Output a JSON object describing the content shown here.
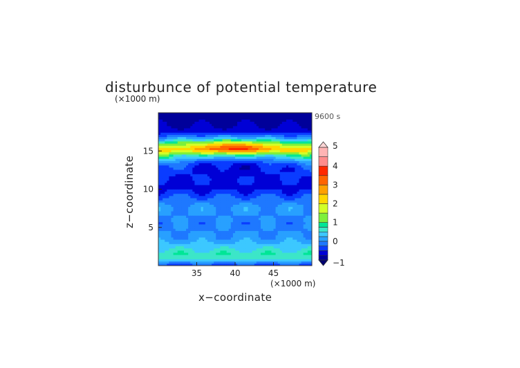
{
  "chart_data": {
    "type": "heatmap",
    "title": "disturbunce of potential temperature",
    "z_unit_label": "(×1000 m)",
    "x_unit_label": "(×1000 m)",
    "time_label": "9600 s",
    "xlabel": "x−coordinate",
    "ylabel": "z−coordinate",
    "xlim": [
      30,
      50
    ],
    "ylim": [
      0,
      20
    ],
    "x_ticks": [
      "35",
      "40",
      "45"
    ],
    "y_ticks": [
      "5",
      "10",
      "15"
    ],
    "colorbar": {
      "ticks": [
        "5",
        "4",
        "3",
        "2",
        "1",
        "0",
        "−1"
      ],
      "range": [
        -1,
        5
      ],
      "levels": [
        {
          "from": -1.0,
          "to": -0.75,
          "color": "#00009a"
        },
        {
          "from": -0.75,
          "to": -0.5,
          "color": "#0000d6"
        },
        {
          "from": -0.5,
          "to": -0.25,
          "color": "#0a3cff"
        },
        {
          "from": -0.25,
          "to": 0.0,
          "color": "#1e78ff"
        },
        {
          "from": 0.0,
          "to": 0.25,
          "color": "#28a0ff"
        },
        {
          "from": 0.25,
          "to": 0.5,
          "color": "#3cc8ff"
        },
        {
          "from": 0.5,
          "to": 0.75,
          "color": "#3ce6c8"
        },
        {
          "from": 0.75,
          "to": 1.0,
          "color": "#00e696"
        },
        {
          "from": 1.0,
          "to": 1.5,
          "color": "#7df03c"
        },
        {
          "from": 1.5,
          "to": 2.0,
          "color": "#d2ff28"
        },
        {
          "from": 2.0,
          "to": 2.5,
          "color": "#ffd700"
        },
        {
          "from": 2.5,
          "to": 3.0,
          "color": "#ffa000"
        },
        {
          "from": 3.0,
          "to": 3.5,
          "color": "#ff6400"
        },
        {
          "from": 3.5,
          "to": 4.0,
          "color": "#ff2800"
        },
        {
          "from": 4.0,
          "to": 4.5,
          "color": "#ff8c8c"
        },
        {
          "from": 4.5,
          "to": 5.0,
          "color": "#ffb4b4"
        }
      ]
    },
    "vertical_profile": [
      {
        "z": 19.5,
        "value": -0.9
      },
      {
        "z": 18.5,
        "value": -0.8
      },
      {
        "z": 17.5,
        "value": -0.6
      },
      {
        "z": 16.5,
        "value": 0.2
      },
      {
        "z": 15.7,
        "value": 1.3
      },
      {
        "z": 15.2,
        "value": 2.0
      },
      {
        "z": 14.5,
        "value": 0.6
      },
      {
        "z": 13.5,
        "value": 0.0
      },
      {
        "z": 12.5,
        "value": -0.3
      },
      {
        "z": 11.5,
        "value": -0.5
      },
      {
        "z": 10.5,
        "value": -0.6
      },
      {
        "z": 9.5,
        "value": -0.4
      },
      {
        "z": 8.5,
        "value": -0.1
      },
      {
        "z": 7.5,
        "value": 0.1
      },
      {
        "z": 6.5,
        "value": 0.0
      },
      {
        "z": 5.5,
        "value": -0.1
      },
      {
        "z": 4.5,
        "value": 0.0
      },
      {
        "z": 3.5,
        "value": 0.1
      },
      {
        "z": 2.5,
        "value": 0.4
      },
      {
        "z": 1.5,
        "value": 0.7
      },
      {
        "z": 0.8,
        "value": 0.5
      },
      {
        "z": 0.2,
        "value": -0.3
      }
    ],
    "peak": {
      "x": 40,
      "z": 15.5,
      "value": 3.0
    }
  }
}
